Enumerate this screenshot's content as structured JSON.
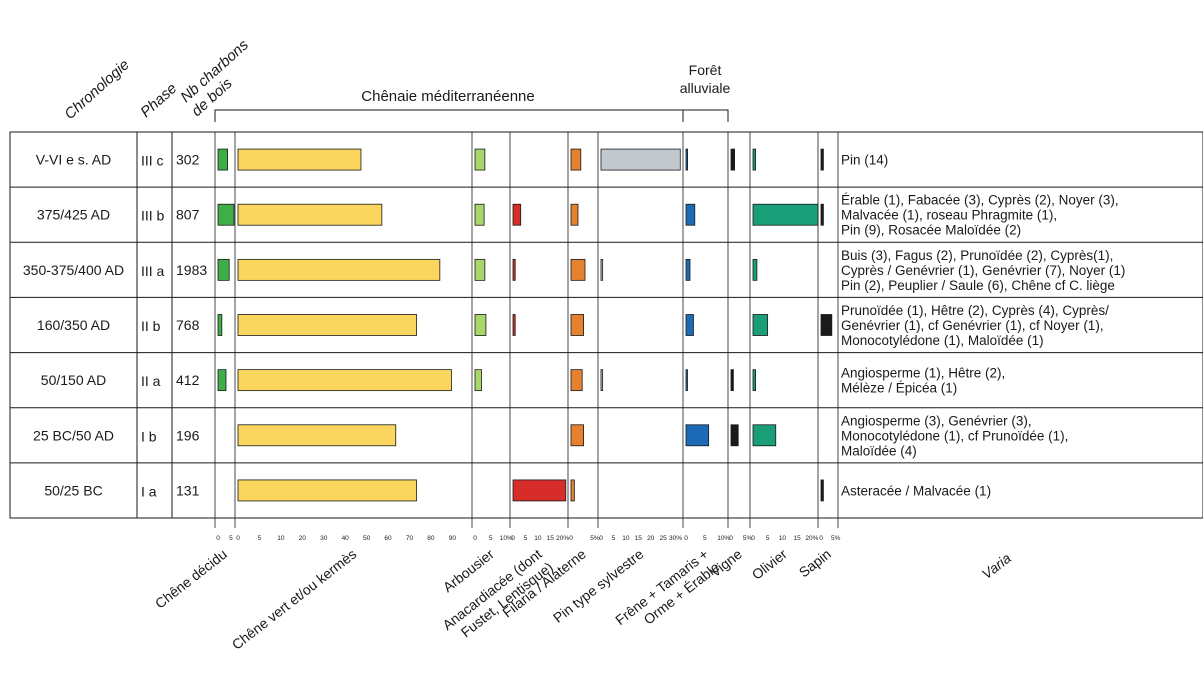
{
  "chart_data": {
    "type": "bar",
    "header": {
      "chronologie": "Chronologie",
      "phase": "Phase",
      "nb_line1": "Nb charbons",
      "nb_line2": "de bois",
      "group_chenaie": "Chênaie méditerranéenne",
      "group_foret_line1": "Forêt",
      "group_foret_line2": "alluviale"
    },
    "rows": [
      {
        "chronologie": "V-VI e s. AD",
        "phase": "III c",
        "nb": "302",
        "varia": [
          "Pin (14)"
        ]
      },
      {
        "chronologie": "375/425 AD",
        "phase": "III b",
        "nb": "807",
        "varia": [
          "Érable (1), Fabacée (3), Cyprès (2), Noyer (3),",
          "Malvacée (1), roseau Phragmite (1),",
          "Pin (9), Rosacée Maloïdée (2)"
        ]
      },
      {
        "chronologie": "350-375/400 AD",
        "phase": "III a",
        "nb": "1983",
        "varia": [
          "Buis (3), Fagus (2), Prunoïdée (2), Cyprès(1),",
          "Cyprès / Genévrier (1), Genévrier (7), Noyer (1)",
          "Pin (2), Peuplier / Saule (6), Chêne cf C. liège"
        ]
      },
      {
        "chronologie": "160/350 AD",
        "phase": "II b",
        "nb": "768",
        "varia": [
          "Prunoïdée (1), Hêtre (2), Cyprès (4), Cyprès/",
          "Genévrier (1), cf Genévrier (1), cf Noyer (1),",
          "Monocotylédone (1), Maloïdée (1)"
        ]
      },
      {
        "chronologie": "50/150 AD",
        "phase": "II a",
        "nb": "412",
        "varia": [
          "Angiosperme (1), Hêtre (2),",
          "Mélèze / Épicéa (1)"
        ]
      },
      {
        "chronologie": "25 BC/50 AD",
        "phase": "I b",
        "nb": "196",
        "varia": [
          "Angiosperme (3), Genévrier (3),",
          "Monocotylédone (1), cf Prunoïdée (1),",
          "Maloïdée (4)"
        ]
      },
      {
        "chronologie": "50/25 BC",
        "phase": "I a",
        "nb": "131",
        "varia": [
          "Asteracée / Malvacée (1)"
        ]
      }
    ],
    "series": [
      {
        "name": "Chêne décidu",
        "label_lines": [
          "Chêne décidu"
        ],
        "color": "#3fae49",
        "max": 5,
        "ticks": [
          "0",
          "5"
        ],
        "values": [
          3,
          5,
          3.5,
          1.2,
          2.5,
          0,
          0
        ]
      },
      {
        "name": "Chêne vert et/ou kermès",
        "label_lines": [
          "Chêne vert et/ou kermès"
        ],
        "color": "#fbd65e",
        "max": 100,
        "ticks": [
          "0",
          "5",
          "10",
          "20",
          "30",
          "40",
          "50",
          "60",
          "70",
          "80",
          "90"
        ],
        "values": [
          53,
          62,
          87,
          77,
          92,
          68,
          77
        ]
      },
      {
        "name": "Arbousier",
        "label_lines": [
          "Arbousier"
        ],
        "color": "#a9d66b",
        "max": 5,
        "ticks": [
          "0",
          "5",
          "10%"
        ],
        "values": [
          3.8,
          3.5,
          3.8,
          4.2,
          2.5,
          0,
          0
        ]
      },
      {
        "name": "Anacardiacée (dont Fustet, Lentisque)",
        "label_lines": [
          "Anacardiacée (dont",
          "Fustet, Lentisque)"
        ],
        "color": "#d62d2a",
        "max": 25,
        "ticks": [
          "0",
          "5",
          "10",
          "15",
          "20%"
        ],
        "values": [
          0,
          3.5,
          1,
          1,
          0,
          0,
          24
        ]
      },
      {
        "name": "Filaria / Alaterne",
        "label_lines": [
          "Filaria / Alaterne"
        ],
        "color": "#e5812f",
        "max": 5,
        "ticks": [
          "0",
          "5%"
        ],
        "values": [
          3.5,
          2.5,
          5,
          4.5,
          4,
          4.5,
          1.2
        ]
      },
      {
        "name": "Pin type sylvestre",
        "label_lines": [
          "Pin type sylvestre"
        ],
        "color": "#c3c8cf",
        "max": 30,
        "ticks": [
          "0",
          "5",
          "10",
          "15",
          "20",
          "25",
          "30%"
        ],
        "values": [
          29,
          0,
          0.6,
          0,
          0.6,
          0,
          0
        ]
      },
      {
        "name": "Frêne + Tamaris + Orme + Érable",
        "label_lines": [
          "Frêne + Tamaris +",
          "Orme + Érable"
        ],
        "color": "#1c6ab6",
        "max": 15,
        "ticks": [
          "0",
          "5",
          "10%"
        ],
        "values": [
          0.6,
          3.3,
          1.5,
          2.8,
          0.5,
          8.5,
          0
        ]
      },
      {
        "name": "Vigne",
        "label_lines": [
          "Vigne"
        ],
        "color": "#1a1a1a",
        "max": 5,
        "ticks": [
          "0",
          "5%"
        ],
        "values": [
          1.5,
          0,
          0,
          0,
          1,
          3,
          0
        ]
      },
      {
        "name": "Olivier",
        "label_lines": [
          "Olivier"
        ],
        "color": "#1a9e78",
        "max": 20,
        "ticks": [
          "0",
          "5",
          "10",
          "15",
          "20%"
        ],
        "values": [
          0.8,
          20,
          1.2,
          4.5,
          0.8,
          7,
          0
        ]
      },
      {
        "name": "Sapin",
        "label_lines": [
          "Sapin"
        ],
        "color": "#1a1a1a",
        "max": 5,
        "ticks": [
          "0",
          "5%"
        ],
        "values": [
          1,
          1,
          0,
          4.5,
          0,
          0,
          1
        ]
      }
    ],
    "varia_label": "Varia"
  }
}
